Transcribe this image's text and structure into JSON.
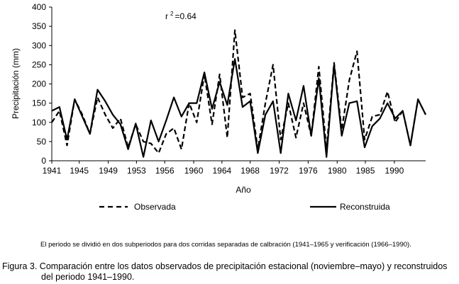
{
  "chart_data": {
    "type": "line",
    "ylabel": "Precipitación (mm)",
    "xlabel": "Año",
    "annotation": "r 2 =0.64",
    "annotation_base": "r",
    "annotation_sup": "2",
    "annotation_rest": "=0.64",
    "ylim": [
      0,
      400
    ],
    "xlim": [
      1941,
      1990
    ],
    "y_ticks": [
      0,
      50,
      100,
      150,
      200,
      250,
      300,
      350,
      400
    ],
    "x_ticks": [
      "1941",
      "1945",
      "1949",
      "1953",
      "1956",
      "1960",
      "1964",
      "1968",
      "1972",
      "1976",
      "1980",
      "1985",
      "1990"
    ],
    "x_tick_years": [
      1941,
      1944.6,
      1948.4,
      1952.1,
      1955.8,
      1959.6,
      1963.3,
      1967.0,
      1970.8,
      1974.6,
      1978.4,
      1982.1,
      1985.9
    ],
    "x": [
      1941,
      1942,
      1943,
      1944,
      1945,
      1946,
      1947,
      1948,
      1949,
      1950,
      1951,
      1952,
      1953,
      1954,
      1955,
      1956,
      1957,
      1958,
      1959,
      1960,
      1961,
      1962,
      1963,
      1964,
      1965,
      1966,
      1967,
      1968,
      1969,
      1970,
      1971,
      1972,
      1973,
      1974,
      1975,
      1976,
      1977,
      1978,
      1979,
      1980,
      1981,
      1982,
      1983,
      1984,
      1985,
      1986,
      1987,
      1988,
      1989,
      1990
    ],
    "series": [
      {
        "name": "Observada",
        "style": "dashed",
        "values": [
          100,
          130,
          40,
          160,
          120,
          70,
          165,
          120,
          85,
          110,
          35,
          95,
          50,
          45,
          20,
          70,
          85,
          30,
          150,
          100,
          225,
          95,
          225,
          60,
          340,
          165,
          175,
          30,
          150,
          250,
          55,
          150,
          60,
          150,
          65,
          245,
          30,
          255,
          80,
          210,
          285,
          55,
          115,
          120,
          180,
          100,
          130,
          40,
          160,
          120
        ]
      },
      {
        "name": "Reconstruida",
        "style": "solid",
        "values": [
          130,
          140,
          55,
          160,
          115,
          70,
          185,
          155,
          120,
          95,
          30,
          97,
          10,
          105,
          50,
          105,
          165,
          115,
          150,
          150,
          230,
          135,
          205,
          145,
          265,
          140,
          155,
          20,
          120,
          155,
          20,
          175,
          105,
          195,
          65,
          215,
          10,
          250,
          65,
          150,
          155,
          35,
          90,
          110,
          150,
          110,
          130,
          40,
          160,
          120
        ]
      }
    ]
  },
  "legend": {
    "observada": "Observada",
    "reconstruida": "Reconstruida"
  },
  "note": "El periodo se dividió en dos subperiodos para dos corridas separadas de calbración (1941–1965 y verificación (1966–1990).",
  "caption": {
    "line1": "Figura 3. Comparación entre los datos observados de precipitación estacional (noviembre–mayo) y reconstruidos",
    "line2": "del periodo 1941–1990."
  }
}
